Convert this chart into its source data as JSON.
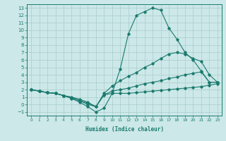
{
  "xlabel": "Humidex (Indice chaleur)",
  "xlim": [
    -0.5,
    23.5
  ],
  "ylim": [
    -1.5,
    13.5
  ],
  "xticks": [
    0,
    1,
    2,
    3,
    4,
    5,
    6,
    7,
    8,
    9,
    10,
    11,
    12,
    13,
    14,
    15,
    16,
    17,
    18,
    19,
    20,
    21,
    22,
    23
  ],
  "yticks": [
    -1,
    0,
    1,
    2,
    3,
    4,
    5,
    6,
    7,
    8,
    9,
    10,
    11,
    12,
    13
  ],
  "bg_color": "#cce8e8",
  "line_color": "#1a7a6e",
  "grid_color": "#aacccc",
  "lines": [
    {
      "x": [
        0,
        1,
        2,
        3,
        4,
        5,
        6,
        7,
        8,
        9,
        10,
        11,
        12,
        13,
        14,
        15,
        16,
        17,
        18,
        19,
        20,
        21,
        22,
        23
      ],
      "y": [
        2.0,
        1.8,
        1.6,
        1.5,
        1.2,
        0.8,
        0.3,
        -0.3,
        -1.0,
        -0.5,
        1.5,
        4.8,
        9.5,
        12.0,
        12.5,
        13.0,
        12.7,
        10.3,
        8.8,
        7.0,
        6.0,
        4.5,
        3.0,
        3.0
      ]
    },
    {
      "x": [
        0,
        1,
        2,
        3,
        4,
        5,
        6,
        7,
        8,
        9,
        10,
        11,
        12,
        13,
        14,
        15,
        16,
        17,
        18,
        19,
        20,
        21,
        22,
        23
      ],
      "y": [
        2.0,
        1.8,
        1.6,
        1.5,
        1.2,
        0.9,
        0.5,
        0.0,
        -0.3,
        1.5,
        2.5,
        3.2,
        3.8,
        4.3,
        5.0,
        5.5,
        6.2,
        6.8,
        7.0,
        6.8,
        6.2,
        5.8,
        4.0,
        3.0
      ]
    },
    {
      "x": [
        0,
        1,
        2,
        3,
        4,
        5,
        6,
        7,
        8,
        9,
        10,
        11,
        12,
        13,
        14,
        15,
        16,
        17,
        18,
        19,
        20,
        21,
        22,
        23
      ],
      "y": [
        2.0,
        1.8,
        1.6,
        1.5,
        1.2,
        1.0,
        0.7,
        0.3,
        -0.3,
        1.3,
        1.8,
        2.0,
        2.2,
        2.5,
        2.8,
        3.0,
        3.2,
        3.5,
        3.7,
        4.0,
        4.2,
        4.4,
        3.0,
        3.0
      ]
    },
    {
      "x": [
        0,
        1,
        2,
        3,
        4,
        5,
        6,
        7,
        8,
        9,
        10,
        11,
        12,
        13,
        14,
        15,
        16,
        17,
        18,
        19,
        20,
        21,
        22,
        23
      ],
      "y": [
        2.0,
        1.8,
        1.6,
        1.5,
        1.2,
        0.9,
        0.5,
        0.2,
        -0.3,
        1.3,
        1.5,
        1.5,
        1.5,
        1.6,
        1.7,
        1.8,
        1.9,
        2.0,
        2.1,
        2.2,
        2.3,
        2.4,
        2.6,
        2.8
      ]
    }
  ]
}
